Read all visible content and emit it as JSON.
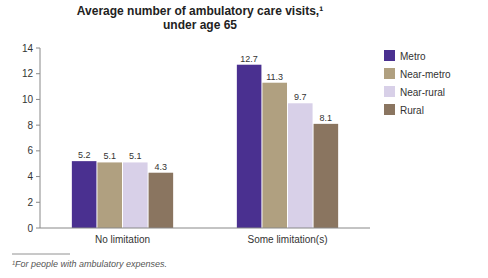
{
  "chart_data": {
    "type": "bar",
    "title": "Average number of ambulatory care visits,¹\nunder age 65",
    "annotations": [
      "¹For people with ambulatory expenses."
    ],
    "categories": [
      "No limitation",
      "Some limitation(s)"
    ],
    "series": [
      {
        "name": "Metro",
        "color": "#4a3090",
        "values": [
          5.2,
          12.7
        ]
      },
      {
        "name": "Near-metro",
        "color": "#b0a080",
        "values": [
          5.1,
          11.3
        ]
      },
      {
        "name": "Near-rural",
        "color": "#d8d0e8",
        "values": [
          5.1,
          9.7
        ]
      },
      {
        "name": "Rural",
        "color": "#8a7560",
        "values": [
          4.3,
          8.1
        ]
      }
    ],
    "ylim": [
      0,
      14
    ],
    "yticks": [
      0,
      2,
      4,
      6,
      8,
      10,
      12,
      14
    ],
    "grid": false,
    "legend": "right",
    "data_labels": true
  }
}
